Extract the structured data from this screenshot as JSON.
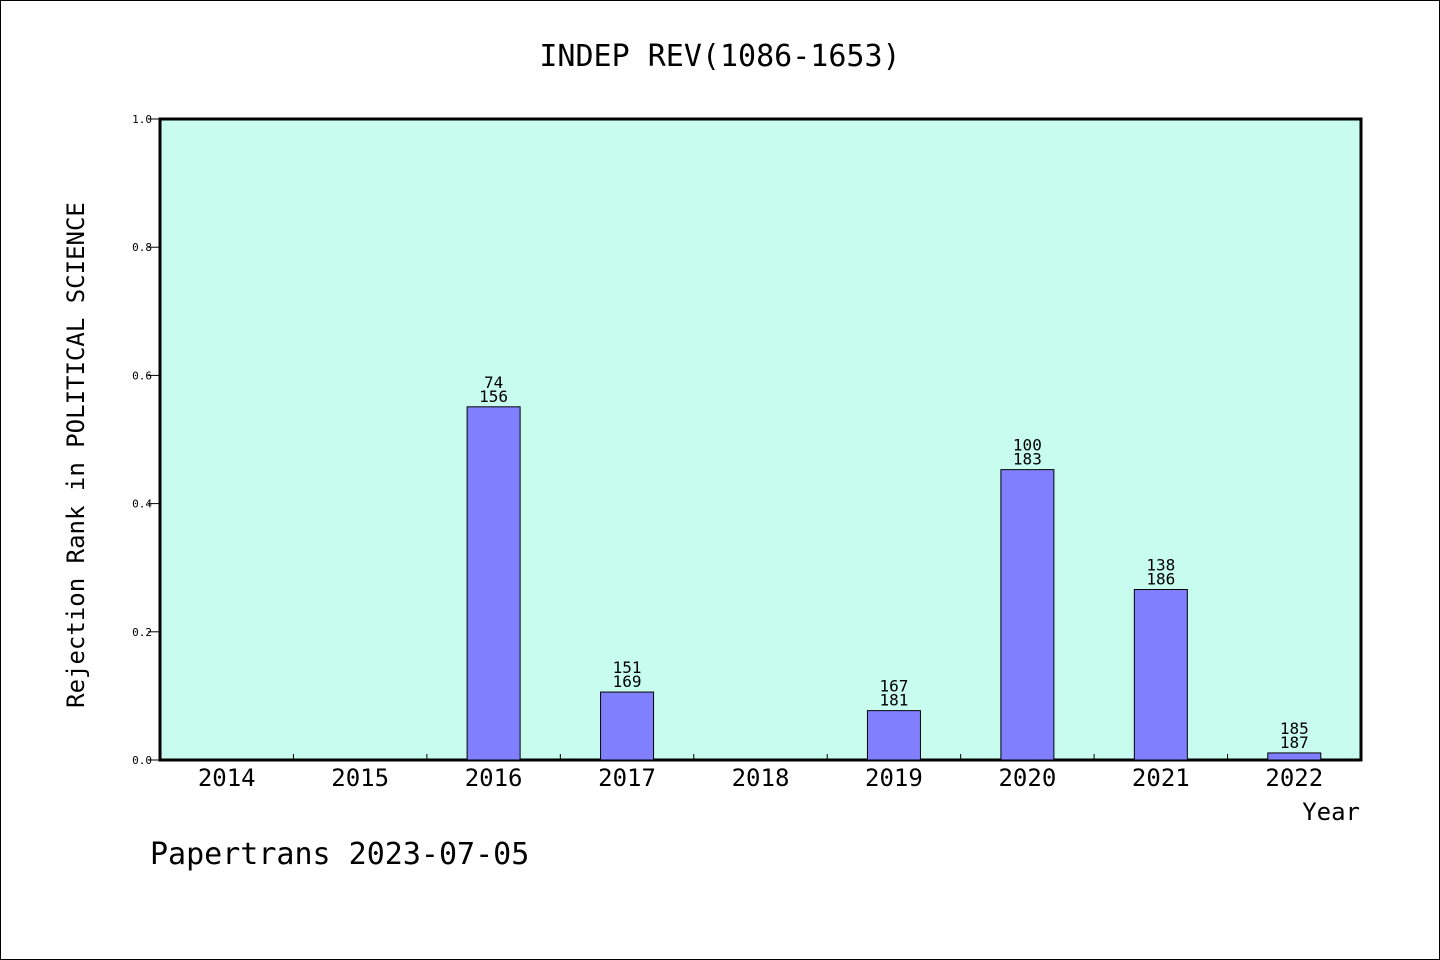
{
  "chart_data": {
    "type": "bar",
    "title": "INDEP REV(1086-1653)",
    "xlabel": "Year",
    "ylabel": "Rejection Rank in POLITICAL SCIENCE",
    "ylim": [
      0,
      1.0
    ],
    "yticks": [
      "0.0",
      "0.2",
      "0.4",
      "0.6",
      "0.8",
      "1.0"
    ],
    "categories": [
      "2014",
      "2015",
      "2016",
      "2017",
      "2018",
      "2019",
      "2020",
      "2021",
      "2022"
    ],
    "values": [
      0,
      0,
      0.551,
      0.106,
      0,
      0.077,
      0.453,
      0.266,
      0.011
    ],
    "labels": [
      [
        "",
        ""
      ],
      [
        "",
        ""
      ],
      [
        "74",
        "156"
      ],
      [
        "151",
        "169"
      ],
      [
        "",
        ""
      ],
      [
        "167",
        "181"
      ],
      [
        "100",
        "183"
      ],
      [
        "138",
        "186"
      ],
      [
        "185",
        "187"
      ]
    ],
    "colors": {
      "plot_bg": "#c8fcee",
      "bar": "#8080ff"
    },
    "grid": false,
    "legend": "none"
  },
  "footer": "Papertrans 2023-07-05"
}
